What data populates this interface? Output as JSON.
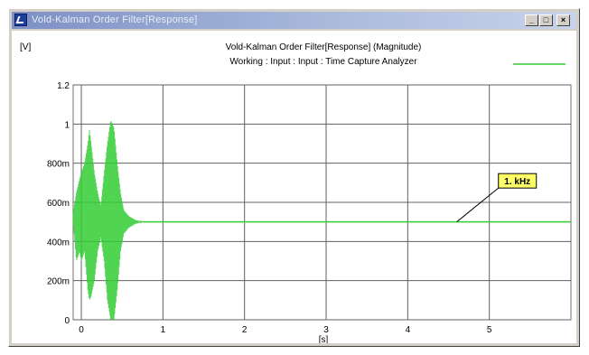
{
  "window": {
    "title": "Vold-Kalman Order Filter[Response]",
    "minimize_glyph": "_",
    "maximize_glyph": "□",
    "close_glyph": "×"
  },
  "chart_data": {
    "type": "line",
    "title": "Vold-Kalman Order Filter[Response] (Magnitude)",
    "subtitle": "Working : Input : Input : Time Capture Analyzer",
    "ylabel": "[V]",
    "xlabel": "[s]",
    "xlim": [
      -0.1,
      6.0
    ],
    "ylim": [
      0,
      1.2
    ],
    "x_ticks": [
      0,
      1,
      2,
      3,
      4,
      5
    ],
    "x_tick_labels": [
      "0",
      "1",
      "2",
      "3",
      "4",
      "5"
    ],
    "y_ticks": [
      0,
      0.2,
      0.4,
      0.6,
      0.8,
      1.0,
      1.2
    ],
    "y_tick_labels": [
      "0",
      "200m",
      "400m",
      "600m",
      "800m",
      "1",
      "1.2"
    ],
    "grid": true,
    "legend": "top-right",
    "series": [
      {
        "color": "#33cc33",
        "steady_value": 0.5,
        "envelope": [
          [
            -0.1,
            0.5,
            0.55
          ],
          [
            -0.06,
            0.3,
            0.65
          ],
          [
            -0.02,
            0.35,
            0.72
          ],
          [
            0.0,
            0.3,
            0.75
          ],
          [
            0.04,
            0.35,
            0.8
          ],
          [
            0.08,
            0.15,
            0.9
          ],
          [
            0.1,
            0.1,
            0.97
          ],
          [
            0.12,
            0.12,
            0.9
          ],
          [
            0.16,
            0.2,
            0.75
          ],
          [
            0.2,
            0.35,
            0.65
          ],
          [
            0.24,
            0.42,
            0.58
          ],
          [
            0.28,
            0.3,
            0.75
          ],
          [
            0.32,
            0.1,
            0.9
          ],
          [
            0.36,
            0.0,
            1.02
          ],
          [
            0.4,
            0.0,
            0.98
          ],
          [
            0.44,
            0.15,
            0.8
          ],
          [
            0.48,
            0.35,
            0.65
          ],
          [
            0.52,
            0.44,
            0.56
          ],
          [
            0.58,
            0.47,
            0.53
          ],
          [
            0.66,
            0.49,
            0.51
          ],
          [
            0.75,
            0.5,
            0.5
          ],
          [
            6.0,
            0.5,
            0.5
          ]
        ]
      }
    ],
    "annotation": {
      "text": "1. kHz",
      "point_x": 4.6,
      "point_y": 0.5,
      "label_x": 5.2,
      "label_y": 0.71
    }
  }
}
